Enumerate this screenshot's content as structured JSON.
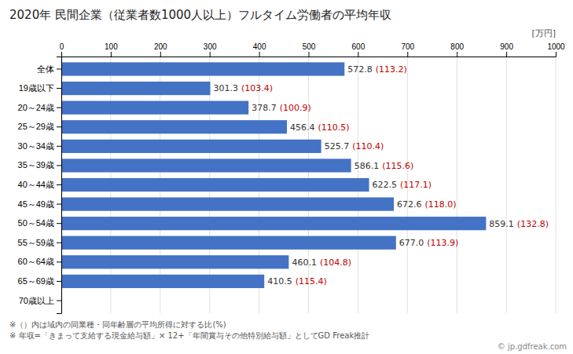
{
  "chart_data": {
    "type": "bar",
    "orientation": "horizontal",
    "title": "2020年 民間企業（従業者数1000人以上）フルタイム労働者の平均年収",
    "xlabel": "[万円]",
    "categories": [
      "全体",
      "19歳以下",
      "20～24歳",
      "25～29歳",
      "30～34歳",
      "35～39歳",
      "40～44歳",
      "45～49歳",
      "50～54歳",
      "55～59歳",
      "60～64歳",
      "65～69歳",
      "70歳以上"
    ],
    "values": [
      572.8,
      301.3,
      378.7,
      456.4,
      525.7,
      586.1,
      622.5,
      672.6,
      859.1,
      677.0,
      460.1,
      410.5,
      0
    ],
    "value_labels": [
      "572.8",
      "301.3",
      "378.7",
      "456.4",
      "525.7",
      "586.1",
      "622.5",
      "672.6",
      "859.1",
      "677.0",
      "460.1",
      "410.5",
      null
    ],
    "ratio_labels": [
      "(113.2)",
      "(103.4)",
      "(100.9)",
      "(110.5)",
      "(110.4)",
      "(115.6)",
      "(117.1)",
      "(118.0)",
      "(132.8)",
      "(113.9)",
      "(104.8)",
      "(115.4)",
      null
    ],
    "color": "#4472C4",
    "xlim": [
      0,
      1000
    ],
    "xticks": [
      0,
      100,
      200,
      300,
      400,
      500,
      600,
      700,
      800,
      900,
      1000
    ],
    "grid": true,
    "data_labels": true,
    "footnotes": [
      "※（）内は域内の同業種・同年齢層の平均所得に対する比(%)",
      "※ 年収=「きまって支給する現金給与額」× 12+「年間賞与その他特別給与額」としてGD Freak推計"
    ],
    "watermark": "© jp.gdfreak.com"
  }
}
